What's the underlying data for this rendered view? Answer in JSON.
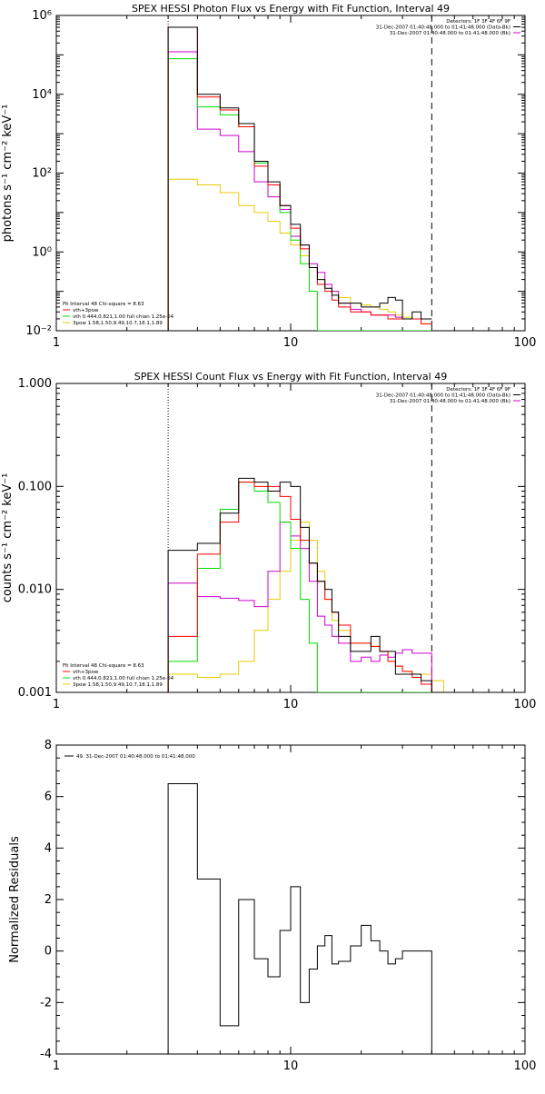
{
  "colors": {
    "black": "#000000",
    "red": "#ff0000",
    "green": "#00dd00",
    "magenta": "#cc00cc",
    "orange": "#ffaa00",
    "yellow": "#e6cc00"
  },
  "chart_data": [
    {
      "type": "line",
      "title": "SPEX HESSI Photon Flux vs Energy with Fit Function, Interval 49",
      "xlabel": "",
      "ylabel": "photons s⁻¹ cm⁻² keV⁻¹",
      "xscale": "log",
      "yscale": "log",
      "xlim": [
        1,
        100
      ],
      "ylim": [
        0.01,
        1000000
      ],
      "x_ticks": [
        1,
        10,
        100
      ],
      "x_tick_labels": [
        "1",
        "10",
        "100"
      ],
      "y_ticks": [
        0.01,
        1,
        100,
        10000,
        1000000
      ],
      "y_tick_labels": [
        "10⁻²",
        "10⁰",
        "10²",
        "10⁴",
        "10⁶"
      ],
      "legend_top": [
        "Detectors: 1F 3F 4F 6F 9F",
        "31-Dec-2007 01:40:48.000 to 01:41:48.000 (Data-Bk)",
        "31-Dec-2007 01:40:48.000 to 01:41:48.000 (Bk)"
      ],
      "legend_bottom": [
        "Fit Interval 48   Chi-square = 8.63",
        "vth+3pow",
        "vth 0.444,0.821,1.00  full chian 1.25e-04",
        "3pow 1.58,1.50,9.49,10.7,18.1,1.89"
      ],
      "energy_edges": [
        3,
        4,
        5,
        6,
        7,
        8,
        9,
        10,
        11,
        12,
        13,
        14,
        15,
        16,
        18,
        20,
        22,
        24,
        26,
        28,
        30,
        33,
        36,
        40
      ],
      "fit_range": [
        3,
        40
      ],
      "series": [
        {
          "name": "",
          "color": "#000000",
          "values": [
            500000,
            10000,
            4500,
            1800,
            200,
            60,
            15,
            5,
            1.5,
            0.4,
            0.2,
            0.12,
            0.08,
            0.05,
            0.05,
            0.04,
            0.04,
            0.05,
            0.07,
            0.06,
            0.02,
            0.03,
            0.02
          ]
        },
        {
          "name": "",
          "color": "#ff0000",
          "values": [
            500000,
            8500,
            4000,
            1500,
            150,
            50,
            15,
            4,
            1.2,
            0.4,
            0.15,
            0.1,
            0.06,
            0.04,
            0.03,
            0.03,
            0.025,
            0.025,
            0.02,
            0.02,
            0.02,
            0.02,
            0.015
          ]
        },
        {
          "name": "",
          "color": "#00dd00",
          "values": [
            80000,
            4800,
            3000,
            1500,
            180,
            50,
            10,
            2,
            0.5,
            0.1,
            0.01,
            0.01,
            0.01,
            0.01,
            0.01,
            0.01,
            0.01,
            0.01,
            0.01,
            0.01,
            0.01,
            0.01,
            0.01
          ]
        },
        {
          "name": "",
          "color": "#cc00cc",
          "values": [
            120000,
            1300,
            900,
            350,
            60,
            25,
            12,
            2.5,
            1.5,
            0.5,
            0.3,
            0.15,
            0.1,
            0.05,
            0.035,
            0.03,
            0.025,
            0.025,
            0.025,
            0.022,
            0.02,
            0.02,
            0.02
          ]
        },
        {
          "name": "",
          "color": "#e6cc00",
          "values": [
            70,
            50,
            32,
            15,
            10,
            6,
            3,
            1.5,
            0.8,
            0.4,
            0.2,
            0.15,
            0.1,
            0.07,
            0.05,
            0.045,
            0.04,
            0.035,
            0.03,
            0.025,
            0.022,
            0.02,
            0.015
          ]
        }
      ]
    },
    {
      "type": "line",
      "title": "SPEX HESSI Count Flux vs Energy with Fit Function, Interval 49",
      "xlabel": "",
      "ylabel": "counts s⁻¹ cm⁻² keV⁻¹",
      "xscale": "log",
      "yscale": "log",
      "xlim": [
        1,
        100
      ],
      "ylim": [
        0.001,
        1
      ],
      "x_ticks": [
        1,
        10,
        100
      ],
      "x_tick_labels": [
        "1",
        "10",
        "100"
      ],
      "y_ticks": [
        0.001,
        0.01,
        0.1,
        1
      ],
      "y_tick_labels": [
        "0.001",
        "0.010",
        "0.100",
        "1.000"
      ],
      "legend_top": [
        "Detectors: 1F 3F 4F 6F 9F",
        "31-Dec-2007 01:40:48.000 to 01:41:48.000 (Data-Bk)",
        "31-Dec-2007 01:40:48.000 to 01:41:48.000 (Bk)"
      ],
      "legend_bottom": [
        "Fit Interval 48   Chi-square = 8.63",
        "vth+3pow",
        "vth 0.444,0.821,1.00  full chian 1.25e-04",
        "3pow 1.58,1.50,9.49,10.7,18.1,1.89"
      ],
      "energy_edges": [
        3,
        4,
        5,
        6,
        7,
        8,
        9,
        10,
        11,
        12,
        13,
        14,
        15,
        16,
        18,
        20,
        22,
        24,
        26,
        28,
        30,
        33,
        36,
        40,
        45,
        50
      ],
      "fit_range": [
        3,
        40
      ],
      "series": [
        {
          "name": "",
          "color": "#000000",
          "values": [
            0.024,
            0.028,
            0.055,
            0.12,
            0.11,
            0.09,
            0.11,
            0.1,
            0.04,
            0.018,
            0.012,
            0.01,
            0.006,
            0.0035,
            0.0025,
            0.0025,
            0.0035,
            0.0025,
            0.0025,
            0.0015,
            0.0015,
            0.0015,
            0.0013,
            0.001,
            0.001
          ]
        },
        {
          "name": "",
          "color": "#ff0000",
          "values": [
            0.0035,
            0.022,
            0.045,
            0.11,
            0.1,
            0.1,
            0.08,
            0.048,
            0.03,
            0.018,
            0.012,
            0.008,
            0.006,
            0.0045,
            0.003,
            0.003,
            0.0028,
            0.0025,
            0.002,
            0.0018,
            0.0016,
            0.0014,
            0.0012,
            0.001,
            0.001
          ]
        },
        {
          "name": "",
          "color": "#00dd00",
          "values": [
            0.002,
            0.016,
            0.06,
            0.11,
            0.09,
            0.07,
            0.045,
            0.025,
            0.008,
            0.003,
            0.001,
            0.001,
            0.001,
            0.001,
            0.001,
            0.001,
            0.001,
            0.001,
            0.001,
            0.001,
            0.001,
            0.001,
            0.001,
            0.001,
            0.001
          ]
        },
        {
          "name": "",
          "color": "#cc00cc",
          "values": [
            0.0115,
            0.0085,
            0.0082,
            0.0078,
            0.0068,
            0.015,
            0.045,
            0.033,
            0.025,
            0.012,
            0.0055,
            0.0045,
            0.0035,
            0.003,
            0.002,
            0.0022,
            0.002,
            0.0023,
            0.0022,
            0.0024,
            0.0026,
            0.0024,
            0.0024,
            0.001,
            0.001
          ]
        },
        {
          "name": "",
          "color": "#e6cc00",
          "values": [
            0.0015,
            0.0014,
            0.0015,
            0.002,
            0.004,
            0.008,
            0.015,
            0.03,
            0.045,
            0.03,
            0.015,
            0.008,
            0.005,
            0.004,
            0.003,
            0.003,
            0.0028,
            0.0025,
            0.002,
            0.0018,
            0.0016,
            0.0015,
            0.0015,
            0.0013,
            0.001
          ]
        }
      ]
    },
    {
      "type": "line",
      "title": "",
      "xlabel": "",
      "ylabel": "Normalized Residuals",
      "xscale": "log",
      "yscale": "linear",
      "xlim": [
        1,
        100
      ],
      "ylim": [
        -4,
        8
      ],
      "x_ticks": [
        1,
        10,
        100
      ],
      "x_tick_labels": [
        "1",
        "10",
        "100"
      ],
      "y_ticks": [
        -4,
        -2,
        0,
        2,
        4,
        6,
        8
      ],
      "y_tick_labels": [
        "-4",
        "-2",
        "0",
        "2",
        "4",
        "6",
        "8"
      ],
      "legend_top": [
        "49. 31-Dec-2007 01:40:48.000 to 01:41:48.000"
      ],
      "legend_bottom": [],
      "energy_edges": [
        3,
        4,
        5,
        6,
        7,
        8,
        9,
        10,
        11,
        12,
        13,
        14,
        15,
        16,
        18,
        20,
        22,
        24,
        26,
        28,
        30,
        33,
        36,
        40
      ],
      "fit_range": [
        3,
        40
      ],
      "series": [
        {
          "name": "",
          "color": "#000000",
          "values": [
            6.5,
            2.8,
            -2.9,
            2.0,
            -0.3,
            -1.0,
            0.8,
            2.5,
            -2.0,
            -0.7,
            0.2,
            0.6,
            -0.5,
            -0.4,
            0.2,
            1.0,
            0.4,
            0.0,
            -0.5,
            -0.3,
            0.0,
            0.0,
            0.0
          ]
        }
      ]
    }
  ]
}
